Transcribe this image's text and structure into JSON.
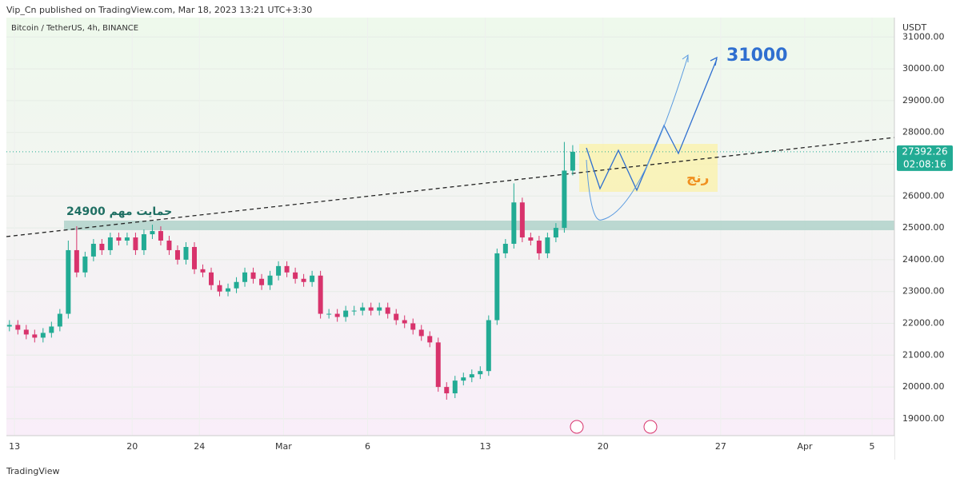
{
  "header": "Vip_Cn published on TradingView.com, Mar 18, 2023 13:21 UTC+3:30",
  "footer": "TradingView",
  "chart_data": {
    "type": "candlestick",
    "title": "Bitcoin / TetherUS, 4h, BINANCE",
    "y_label": "USDT",
    "countdown": "02:08:16",
    "annotations": [
      "31000",
      "24900 حمایت مهم",
      "رنج"
    ],
    "up_color": "#22ab94",
    "down_color": "#d8336c",
    "xlim": [
      -0.48,
      52.33
    ],
    "ylim": [
      18470,
      31610
    ],
    "xticks": [
      {
        "value": 0,
        "label": "13"
      },
      {
        "value": 7,
        "label": "20"
      },
      {
        "value": 11,
        "label": "24"
      },
      {
        "value": 16,
        "label": "Mar"
      },
      {
        "value": 21,
        "label": "6"
      },
      {
        "value": 28,
        "label": "13"
      },
      {
        "value": 35,
        "label": "20"
      },
      {
        "value": 42,
        "label": "27"
      },
      {
        "value": 47,
        "label": "Apr"
      },
      {
        "value": 51,
        "label": "5"
      }
    ],
    "yticks": [
      {
        "value": 19000,
        "label": "19000.00"
      },
      {
        "value": 20000,
        "label": "20000.00"
      },
      {
        "value": 21000,
        "label": "21000.00"
      },
      {
        "value": 22000,
        "label": "22000.00"
      },
      {
        "value": 23000,
        "label": "23000.00"
      },
      {
        "value": 24000,
        "label": "24000.00"
      },
      {
        "value": 25000,
        "label": "25000.00"
      },
      {
        "value": 26000,
        "label": "26000.00"
      },
      {
        "value": 27000,
        "label": "27000.00"
      },
      {
        "value": 28000,
        "label": "28000.00"
      },
      {
        "value": 29000,
        "label": "29000.00"
      },
      {
        "value": 30000,
        "label": "30000.00"
      },
      {
        "value": 31000,
        "label": "31000.00"
      }
    ],
    "x": [
      -0.3,
      0.2,
      0.7,
      1.2,
      1.7,
      2.2,
      2.7,
      3.2,
      3.7,
      4.2,
      4.7,
      5.2,
      5.7,
      6.2,
      6.7,
      7.2,
      7.7,
      8.2,
      8.7,
      9.2,
      9.7,
      10.2,
      10.7,
      11.2,
      11.7,
      12.2,
      12.7,
      13.2,
      13.7,
      14.2,
      14.7,
      15.2,
      15.7,
      16.2,
      16.7,
      17.2,
      17.7,
      18.2,
      18.7,
      19.2,
      19.7,
      20.2,
      20.7,
      21.2,
      21.7,
      22.2,
      22.7,
      23.2,
      23.7,
      24.2,
      24.7,
      25.2,
      25.7,
      26.2,
      26.7,
      27.2,
      27.7,
      28.2,
      28.7,
      29.2,
      29.7,
      30.2,
      30.7,
      31.2,
      31.7,
      32.2,
      32.7,
      33.2
    ],
    "open": [
      21900,
      21950,
      21800,
      21650,
      21550,
      21700,
      21900,
      22300,
      24300,
      23600,
      24100,
      24500,
      24300,
      24700,
      24600,
      24700,
      24300,
      24800,
      24900,
      24600,
      24300,
      24000,
      24400,
      23700,
      23600,
      23200,
      23000,
      23100,
      23300,
      23600,
      23400,
      23200,
      23500,
      23800,
      23600,
      23400,
      23300,
      23500,
      22300,
      22300,
      22200,
      22400,
      22400,
      22500,
      22400,
      22500,
      22300,
      22100,
      22000,
      21800,
      21600,
      21400,
      20000,
      19800,
      20200,
      20300,
      20400,
      20500,
      22100,
      24200,
      24500,
      25800,
      24700,
      24600,
      24200,
      24700,
      25000,
      26800
    ],
    "high": [
      22100,
      22100,
      21950,
      21800,
      21850,
      22050,
      22450,
      24600,
      25050,
      24250,
      24650,
      24650,
      24850,
      24850,
      24850,
      24850,
      24950,
      25100,
      25050,
      24750,
      24450,
      24550,
      24550,
      23850,
      23750,
      23350,
      23250,
      23450,
      23750,
      23750,
      23550,
      23650,
      23950,
      23950,
      23750,
      23550,
      23650,
      23650,
      22450,
      22450,
      22550,
      22550,
      22650,
      22650,
      22650,
      22650,
      22450,
      22250,
      22150,
      21950,
      21750,
      21550,
      20150,
      20350,
      20450,
      20550,
      20650,
      22250,
      24350,
      24650,
      26400,
      25950,
      24850,
      24750,
      24850,
      25150,
      27700,
      27600
    ],
    "low": [
      21750,
      21650,
      21500,
      21400,
      21400,
      21550,
      21750,
      22150,
      23450,
      23450,
      23950,
      24150,
      24150,
      24450,
      24450,
      24150,
      24150,
      24650,
      24450,
      24150,
      23850,
      23850,
      23550,
      23450,
      23050,
      22850,
      22850,
      22950,
      23150,
      23250,
      23050,
      23050,
      23350,
      23450,
      23250,
      23150,
      23150,
      22150,
      22150,
      22050,
      22050,
      22250,
      22250,
      22250,
      22250,
      22150,
      21950,
      21850,
      21650,
      21450,
      21250,
      19850,
      19600,
      19650,
      20050,
      20150,
      20250,
      20350,
      21950,
      24050,
      24350,
      24550,
      24450,
      24000,
      24050,
      24550,
      24850,
      26650
    ],
    "close": [
      21950,
      21800,
      21650,
      21550,
      21700,
      21900,
      22300,
      24300,
      23600,
      24100,
      24500,
      24300,
      24700,
      24600,
      24700,
      24300,
      24800,
      24900,
      24600,
      24300,
      24000,
      24400,
      23700,
      23600,
      23200,
      23000,
      23100,
      23300,
      23600,
      23400,
      23200,
      23500,
      23800,
      23600,
      23400,
      23300,
      23500,
      22300,
      22300,
      22200,
      22400,
      22400,
      22500,
      22400,
      22500,
      22300,
      22100,
      22000,
      21800,
      21600,
      21400,
      20000,
      19800,
      20200,
      20300,
      20400,
      20500,
      22100,
      24200,
      24500,
      25800,
      24700,
      24600,
      24200,
      24700,
      25000,
      26800,
      27392.26
    ]
  }
}
